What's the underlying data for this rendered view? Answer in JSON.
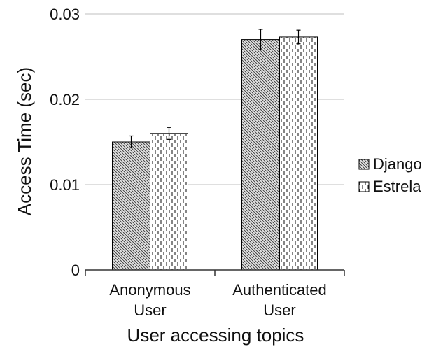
{
  "chart_data": {
    "type": "bar",
    "title": "",
    "xlabel": "User accessing topics",
    "ylabel": "Access Time (sec)",
    "ylim": [
      0,
      0.03
    ],
    "yticks": [
      0,
      0.01,
      0.02,
      0.03
    ],
    "ytick_labels": [
      "0",
      "0.01",
      "0.02",
      "0.03"
    ],
    "grid": true,
    "legend_position": "right",
    "categories": [
      [
        "Anonymous",
        "User"
      ],
      [
        "Authenticated",
        "User"
      ]
    ],
    "series": [
      {
        "name": "Django",
        "pattern": "diagonal-hatch",
        "values": [
          0.015,
          0.027
        ],
        "errors": [
          0.0007,
          0.0012
        ]
      },
      {
        "name": "Estrela",
        "pattern": "vertical-dash",
        "values": [
          0.016,
          0.0273
        ],
        "errors": [
          0.0007,
          0.0008
        ]
      }
    ],
    "colors": {
      "grid": "#bfbfbf",
      "axis": "#333333",
      "bar_outline": "#000000",
      "hatch": "#555555",
      "bar_fill": "#eeeeee"
    }
  }
}
